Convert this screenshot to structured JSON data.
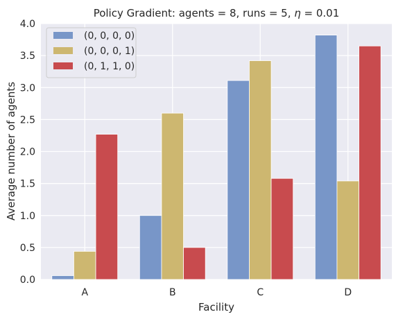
{
  "chart_data": {
    "type": "bar",
    "title_prefix": "Policy Gradient: agents = 8, runs = 5, ",
    "title_eta_symbol": "η",
    "title_suffix": " = 0.01",
    "xlabel": "Facility",
    "ylabel": "Average number of agents",
    "categories": [
      "A",
      "B",
      "C",
      "D"
    ],
    "ylim": [
      0,
      4.0
    ],
    "yticks": [
      "0.0",
      "0.5",
      "1.0",
      "1.5",
      "2.0",
      "2.5",
      "3.0",
      "3.5",
      "4.0"
    ],
    "grid": true,
    "legend_position": "top-left",
    "series": [
      {
        "name": "(0, 0, 0, 0)",
        "color": "#7896c8",
        "values": [
          0.06,
          1.0,
          3.11,
          3.82
        ]
      },
      {
        "name": "(0, 0, 0, 1)",
        "color": "#cdb770",
        "values": [
          0.44,
          2.6,
          3.42,
          1.54
        ]
      },
      {
        "name": "(0, 1, 1, 0)",
        "color": "#c84b4e",
        "values": [
          2.27,
          0.5,
          1.58,
          3.65
        ]
      }
    ],
    "background_color": "#eaeaf2"
  }
}
